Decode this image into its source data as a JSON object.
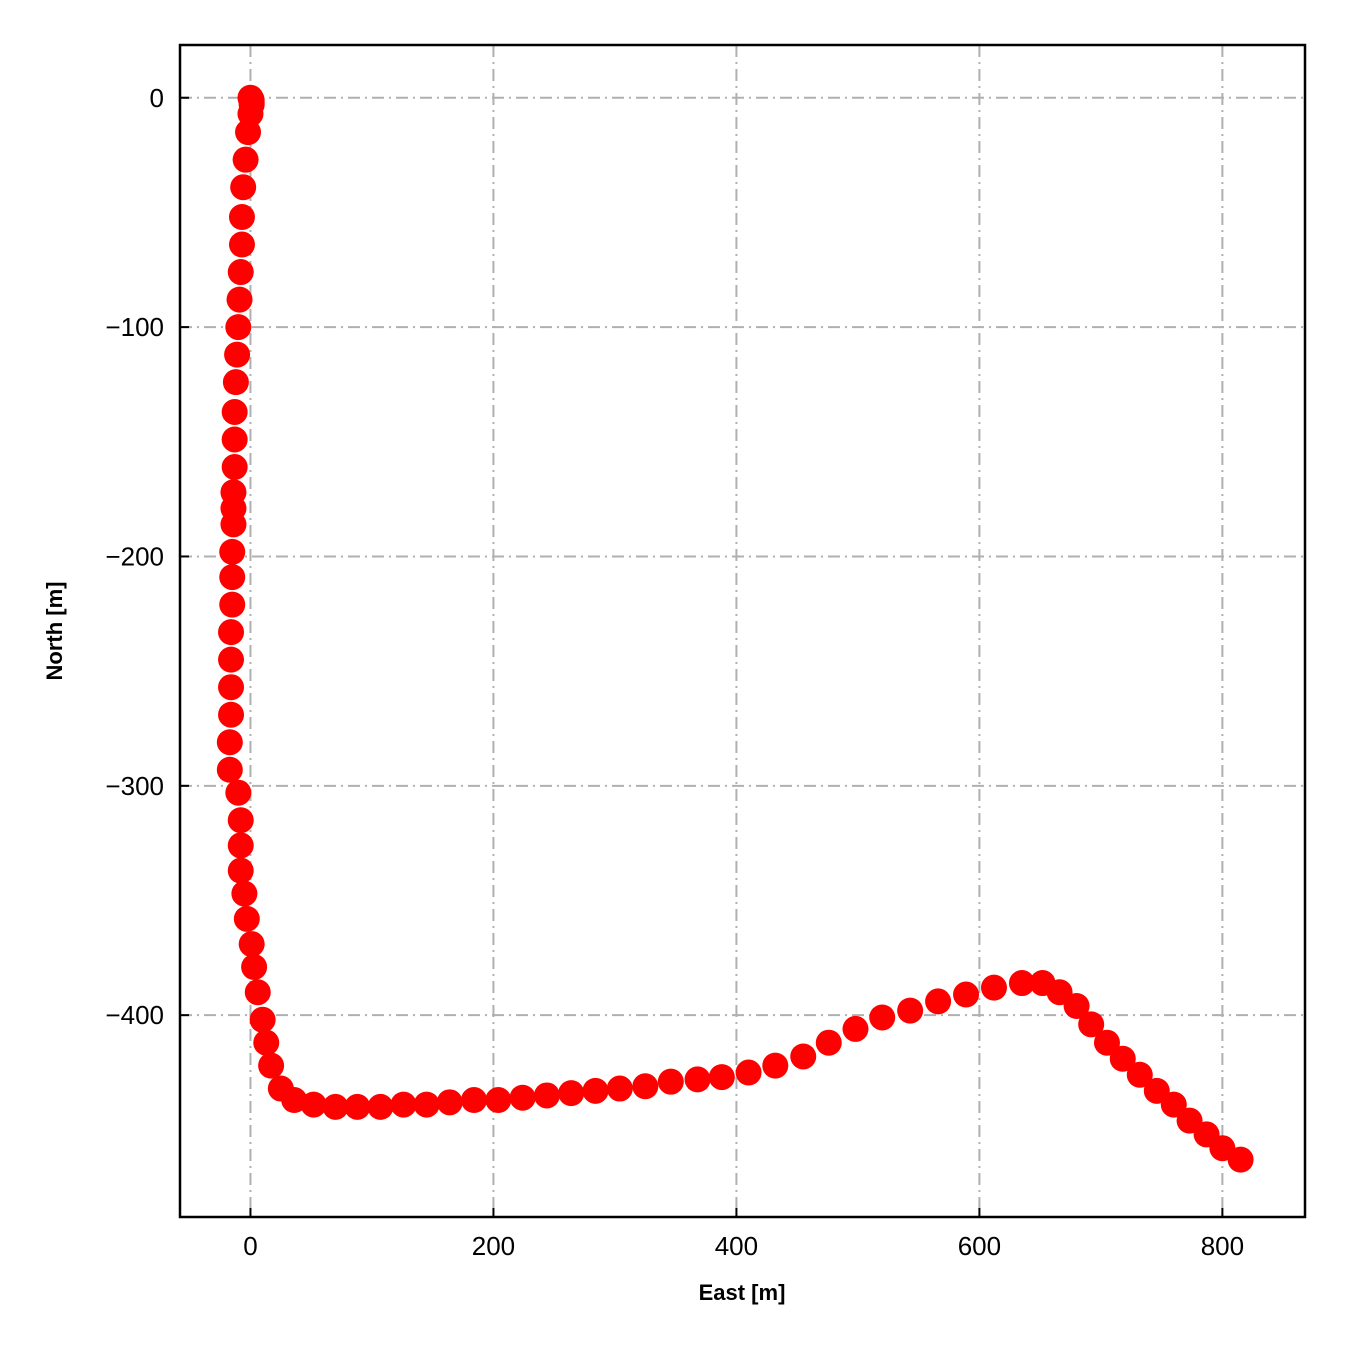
{
  "chart_data": {
    "type": "scatter",
    "title": "",
    "xlabel": "East [m]",
    "ylabel": "North [m]",
    "xlim": [
      -58,
      868
    ],
    "ylim": [
      -488,
      23
    ],
    "xticks": [
      0,
      200,
      400,
      600,
      800
    ],
    "yticks": [
      0,
      -100,
      -200,
      -300,
      -400
    ],
    "xtick_labels": [
      "0",
      "200",
      "400",
      "600",
      "800"
    ],
    "ytick_labels": [
      "0",
      "−100",
      "−200",
      "−300",
      "−400"
    ],
    "grid": true,
    "marker_color": "#ff0000",
    "series": [
      {
        "points": [
          [
            0,
            0
          ],
          [
            0.5,
            -0.5
          ],
          [
            1,
            -1
          ],
          [
            1,
            -2
          ],
          [
            1,
            -3
          ],
          [
            0,
            -7
          ],
          [
            -2,
            -15
          ],
          [
            -4,
            -27
          ],
          [
            -6,
            -39
          ],
          [
            -7,
            -52
          ],
          [
            -7,
            -64
          ],
          [
            -8,
            -76
          ],
          [
            -9,
            -88
          ],
          [
            -10,
            -100
          ],
          [
            -11,
            -112
          ],
          [
            -12,
            -124
          ],
          [
            -13,
            -137
          ],
          [
            -13,
            -149
          ],
          [
            -13,
            -161
          ],
          [
            -14,
            -172
          ],
          [
            -14,
            -179
          ],
          [
            -14,
            -186
          ],
          [
            -15,
            -198
          ],
          [
            -15,
            -209
          ],
          [
            -15,
            -221
          ],
          [
            -16,
            -233
          ],
          [
            -16,
            -245
          ],
          [
            -16,
            -257
          ],
          [
            -16,
            -269
          ],
          [
            -17,
            -281
          ],
          [
            -17,
            -293
          ],
          [
            -10,
            -303
          ],
          [
            -8,
            -315
          ],
          [
            -8,
            -326
          ],
          [
            -8,
            -337
          ],
          [
            -5,
            -347
          ],
          [
            -3,
            -358
          ],
          [
            1,
            -369
          ],
          [
            3,
            -379
          ],
          [
            6,
            -390
          ],
          [
            10,
            -402
          ],
          [
            13,
            -412
          ],
          [
            17,
            -422
          ],
          [
            25,
            -432
          ],
          [
            36,
            -437
          ],
          [
            52,
            -439
          ],
          [
            70,
            -440
          ],
          [
            88,
            -440
          ],
          [
            107,
            -440
          ],
          [
            126,
            -439
          ],
          [
            145,
            -439
          ],
          [
            164,
            -438
          ],
          [
            184,
            -437
          ],
          [
            204,
            -437
          ],
          [
            224,
            -436
          ],
          [
            244,
            -435
          ],
          [
            264,
            -434
          ],
          [
            284,
            -433
          ],
          [
            304,
            -432
          ],
          [
            325,
            -431
          ],
          [
            346,
            -429
          ],
          [
            368,
            -428
          ],
          [
            388,
            -427
          ],
          [
            410,
            -425
          ],
          [
            432,
            -422
          ],
          [
            455,
            -418
          ],
          [
            476,
            -412
          ],
          [
            498,
            -406
          ],
          [
            520,
            -401
          ],
          [
            543,
            -398
          ],
          [
            566,
            -394
          ],
          [
            589,
            -391
          ],
          [
            612,
            -388
          ],
          [
            635,
            -386
          ],
          [
            652,
            -386
          ],
          [
            666,
            -390
          ],
          [
            680,
            -396
          ],
          [
            692,
            -404
          ],
          [
            705,
            -412
          ],
          [
            718,
            -419
          ],
          [
            732,
            -426
          ],
          [
            746,
            -433
          ],
          [
            760,
            -439
          ],
          [
            773,
            -446
          ],
          [
            787,
            -452
          ],
          [
            800,
            -458
          ],
          [
            815,
            -463
          ]
        ]
      }
    ]
  }
}
